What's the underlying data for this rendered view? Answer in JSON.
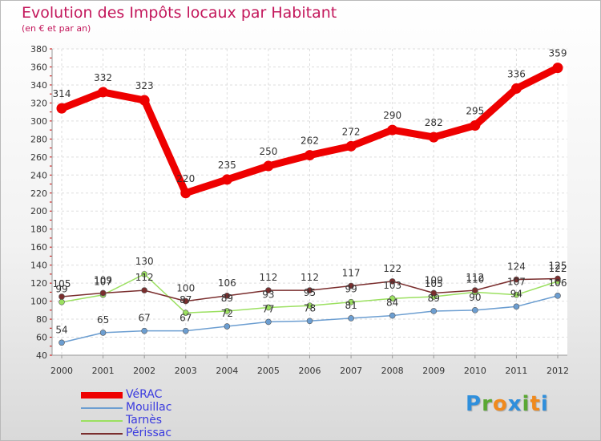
{
  "chart_data": {
    "type": "line",
    "title": "Evolution des Impôts locaux par Habitant",
    "subtitle": "(en € et par an)",
    "xlabel": "",
    "ylabel": "",
    "x": [
      "2000",
      "2001",
      "2002",
      "2003",
      "2004",
      "2005",
      "2006",
      "2007",
      "2008",
      "2009",
      "2010",
      "2011",
      "2012"
    ],
    "ylim": [
      40,
      380
    ],
    "yticks": [
      40,
      60,
      80,
      100,
      120,
      140,
      160,
      180,
      200,
      220,
      240,
      260,
      280,
      300,
      320,
      340,
      360,
      380
    ],
    "grid": true,
    "legend": "bottom-left",
    "series": [
      {
        "name": "VéRAC",
        "color": "#ee0000",
        "values": [
          314,
          332,
          323,
          220,
          235,
          250,
          262,
          272,
          290,
          282,
          295,
          336,
          359
        ]
      },
      {
        "name": "Mouillac",
        "color": "#6c9ed1",
        "values": [
          54,
          65,
          67,
          67,
          72,
          77,
          78,
          81,
          84,
          89,
          90,
          94,
          106
        ]
      },
      {
        "name": "Tarnès",
        "color": "#9be060",
        "values": [
          99,
          107,
          130,
          87,
          89,
          93,
          95,
          99,
          103,
          105,
          110,
          107,
          122
        ]
      },
      {
        "name": "Périssac",
        "color": "#7a2e2e",
        "values": [
          105,
          109,
          112,
          100,
          106,
          112,
          112,
          117,
          122,
          109,
          112,
          124,
          125
        ]
      }
    ]
  },
  "logo": {
    "text": "Proxiti",
    "letters": [
      "P",
      "r",
      "o",
      "x",
      "i",
      "t",
      "i"
    ],
    "colors": [
      "#2f8fdc",
      "#5aa832",
      "#f08a1d",
      "#2f8fdc",
      "#5aa832",
      "#f08a1d",
      "#2f8fdc"
    ]
  }
}
